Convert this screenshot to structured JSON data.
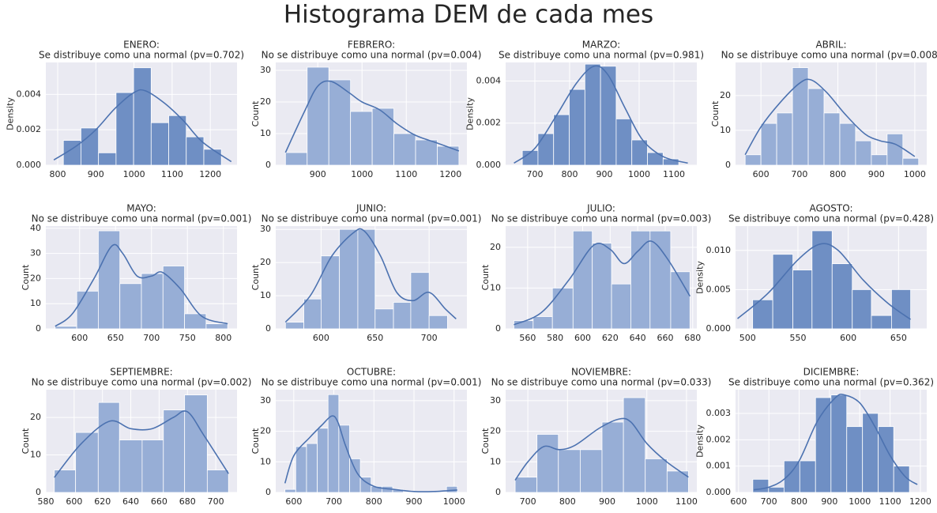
{
  "title": "Histograma DEM de cada mes",
  "chart_data": [
    {
      "type": "histogram",
      "title": "ENERO:",
      "subtitle": "Se distribuye como una normal (pv=0.702)",
      "ylabel": "Density",
      "color": "#6f8fc4",
      "line_color": "#4c72b0",
      "grid": true,
      "bins": [
        815,
        861,
        907,
        953,
        999,
        1045,
        1091,
        1137,
        1183,
        1229
      ],
      "values": [
        0.0014,
        0.0021,
        0.0007,
        0.0041,
        0.0055,
        0.0024,
        0.0028,
        0.0016,
        0.0009
      ],
      "kde": {
        "x": [
          790,
          850,
          900,
          950,
          1000,
          1030,
          1080,
          1130,
          1180,
          1255
        ],
        "values": [
          0.0003,
          0.0011,
          0.002,
          0.0032,
          0.0041,
          0.0042,
          0.0035,
          0.0025,
          0.0013,
          0.0002
        ]
      },
      "xlim": [
        769,
        1270
      ],
      "ylim": [
        0,
        0.0058
      ],
      "xticks": [
        800,
        900,
        1000,
        1100,
        1200
      ],
      "yticks": [
        {
          "value": 0,
          "label": "0.000"
        },
        {
          "value": 0.002,
          "label": "0.002"
        },
        {
          "value": 0.004,
          "label": "0.004"
        }
      ]
    },
    {
      "type": "histogram",
      "title": "FEBRERO:",
      "subtitle": "No se distribuye como una normal (pv=0.004)",
      "ylabel": "Count",
      "color": "#97aed6",
      "line_color": "#4c72b0",
      "grid": true,
      "bins": [
        827,
        876,
        925,
        974,
        1023,
        1072,
        1121,
        1170,
        1219
      ],
      "values": [
        4,
        31,
        27,
        17,
        18,
        10,
        8,
        6
      ],
      "kde": {
        "x": [
          827,
          870,
          900,
          930,
          970,
          1000,
          1040,
          1080,
          1120,
          1170,
          1219
        ],
        "values": [
          4,
          17,
          25,
          26.5,
          23,
          20,
          17.5,
          13,
          9.5,
          7,
          4.5
        ]
      },
      "xlim": [
        805,
        1237
      ],
      "ylim": [
        0,
        32.5
      ],
      "xticks": [
        900,
        1000,
        1100,
        1200
      ],
      "yticks": [
        0,
        10,
        20,
        30
      ]
    },
    {
      "type": "histogram",
      "title": "MARZO:",
      "subtitle": "Se distribuye como una normal (pv=0.981)",
      "ylabel": "Density",
      "color": "#6f8fc4",
      "line_color": "#4c72b0",
      "grid": true,
      "bins": [
        664,
        709,
        754,
        799,
        844,
        889,
        934,
        979,
        1024,
        1069,
        1114
      ],
      "values": [
        0.0007,
        0.0015,
        0.0024,
        0.0036,
        0.0048,
        0.0047,
        0.0022,
        0.0012,
        0.0006,
        0.0003
      ],
      "kde": {
        "x": [
          640,
          700,
          760,
          820,
          870,
          910,
          960,
          1010,
          1070,
          1140
        ],
        "values": [
          0.0001,
          0.0008,
          0.0023,
          0.0039,
          0.0047,
          0.0043,
          0.0027,
          0.0012,
          0.0004,
          0.0001
        ]
      },
      "xlim": [
        616,
        1166
      ],
      "ylim": [
        0,
        0.00488
      ],
      "xticks": [
        700,
        800,
        900,
        1000,
        1100
      ],
      "yticks": [
        {
          "value": 0,
          "label": "0.000"
        },
        {
          "value": 0.002,
          "label": "0.002"
        },
        {
          "value": 0.004,
          "label": "0.004"
        }
      ]
    },
    {
      "type": "histogram",
      "title": "ABRIL:",
      "subtitle": "No se distribuye como una normal (pv=0.008)",
      "ylabel": "Count",
      "color": "#97aed6",
      "line_color": "#4c72b0",
      "grid": true,
      "bins": [
        559,
        600,
        641,
        682,
        723,
        764,
        805,
        846,
        887,
        928,
        969,
        1010
      ],
      "values": [
        3,
        12,
        15,
        28,
        22,
        15,
        12,
        7,
        3,
        9,
        2
      ],
      "kde": {
        "x": [
          559,
          600,
          650,
          700,
          730,
          770,
          820,
          870,
          910,
          950,
          1000
        ],
        "values": [
          3,
          11,
          18,
          23.5,
          24.5,
          21,
          14.5,
          9,
          7,
          6,
          2.5
        ]
      },
      "xlim": [
        534,
        1031
      ],
      "ylim": [
        0,
        29.5
      ],
      "xticks": [
        600,
        700,
        800,
        900,
        1000
      ],
      "yticks": [
        0,
        10,
        20
      ]
    },
    {
      "type": "histogram",
      "title": "MAYO:",
      "subtitle": "No se distribuye como una normal (pv=0.001)",
      "ylabel": "Count",
      "color": "#97aed6",
      "line_color": "#4c72b0",
      "grid": true,
      "bins": [
        566,
        596,
        626,
        656,
        686,
        716,
        746,
        776,
        806
      ],
      "values": [
        1,
        15,
        39,
        18,
        22,
        25,
        6,
        2
      ],
      "kde": {
        "x": [
          566,
          590,
          620,
          645,
          660,
          680,
          700,
          715,
          740,
          770,
          806
        ],
        "values": [
          1,
          6,
          20,
          33,
          30,
          21,
          21,
          22.5,
          16,
          5,
          2
        ]
      },
      "xlim": [
        553,
        819
      ],
      "ylim": [
        0,
        40.9
      ],
      "xticks": [
        600,
        650,
        700,
        750,
        800
      ],
      "yticks": [
        0,
        10,
        20,
        30,
        40
      ]
    },
    {
      "type": "histogram",
      "title": "JUNIO:",
      "subtitle": "No se distribuye como una normal (pv=0.001)",
      "ylabel": "Count",
      "color": "#97aed6",
      "line_color": "#4c72b0",
      "grid": true,
      "bins": [
        567,
        584,
        600,
        617,
        634,
        650,
        667,
        683,
        700,
        717
      ],
      "values": [
        2,
        9,
        22,
        30,
        30,
        6,
        8,
        17,
        4
      ],
      "kde": {
        "x": [
          567,
          590,
          610,
          630,
          640,
          655,
          670,
          685,
          700,
          715,
          725
        ],
        "values": [
          2,
          10,
          22,
          29,
          29.5,
          22,
          11,
          8.5,
          11,
          6,
          3
        ]
      },
      "xlim": [
        558,
        735
      ],
      "ylim": [
        0,
        31
      ],
      "xticks": [
        600,
        650,
        700
      ],
      "yticks": [
        0,
        10,
        20,
        30
      ]
    },
    {
      "type": "histogram",
      "title": "JULIO:",
      "subtitle": "No se distribuye como una normal (pv=0.003)",
      "ylabel": "Count",
      "color": "#97aed6",
      "line_color": "#4c72b0",
      "grid": true,
      "bins": [
        550,
        564,
        578,
        593,
        607,
        621,
        635,
        649,
        664,
        678
      ],
      "values": [
        2,
        3,
        10,
        24,
        21,
        11,
        24,
        24,
        14
      ],
      "kde": {
        "x": [
          550,
          570,
          590,
          608,
          620,
          630,
          640,
          650,
          662,
          678
        ],
        "values": [
          1,
          4,
          12,
          20.5,
          19.5,
          16,
          19,
          21.5,
          17,
          8
        ]
      },
      "xlim": [
        544,
        683
      ],
      "ylim": [
        0,
        25.2
      ],
      "xticks": [
        560,
        580,
        600,
        620,
        640,
        660,
        680
      ],
      "yticks": [
        0,
        10,
        20
      ]
    },
    {
      "type": "histogram",
      "title": "AGOSTO:",
      "subtitle": "Se distribuye como una normal (pv=0.428)",
      "ylabel": "Density",
      "color": "#6f8fc4",
      "line_color": "#4c72b0",
      "grid": true,
      "bins": [
        505,
        525,
        545,
        564,
        584,
        604,
        623,
        643,
        662
      ],
      "values": [
        0.0037,
        0.0095,
        0.0075,
        0.0125,
        0.0083,
        0.005,
        0.0017,
        0.005
      ],
      "kde": {
        "x": [
          490,
          520,
          550,
          572,
          590,
          615,
          640,
          662
        ],
        "values": [
          0.0013,
          0.0045,
          0.0088,
          0.0108,
          0.01,
          0.0062,
          0.0032,
          0.0012
        ]
      },
      "xlim": [
        488,
        678
      ],
      "ylim": [
        0,
        0.0131
      ],
      "xticks": [
        500,
        550,
        600,
        650
      ],
      "yticks": [
        {
          "value": 0,
          "label": "0.000"
        },
        {
          "value": 0.005,
          "label": "0.005"
        },
        {
          "value": 0.01,
          "label": "0.010"
        }
      ]
    },
    {
      "type": "histogram",
      "title": "SEPTIEMBRE:",
      "subtitle": "No se distribuye como una normal (pv=0.002)",
      "ylabel": "Count",
      "color": "#97aed6",
      "line_color": "#4c72b0",
      "grid": true,
      "bins": [
        586,
        601,
        617,
        632,
        648,
        663,
        678,
        694,
        709
      ],
      "values": [
        6,
        16,
        24,
        14,
        14,
        22,
        26,
        6
      ],
      "kde": {
        "x": [
          586,
          605,
          625,
          640,
          655,
          670,
          680,
          692,
          709
        ],
        "values": [
          4,
          13,
          19,
          17,
          17,
          20,
          21.5,
          15,
          5
        ]
      },
      "xlim": [
        580,
        715
      ],
      "ylim": [
        0,
        27.4
      ],
      "xticks": [
        580,
        600,
        620,
        640,
        660,
        680,
        700
      ],
      "yticks": [
        0,
        10,
        20
      ]
    },
    {
      "type": "histogram",
      "title": "OCTUBRE:",
      "subtitle": "No se distribuye como una normal (pv=0.001)",
      "ylabel": "Count",
      "color": "#97aed6",
      "line_color": "#4c72b0",
      "grid": true,
      "bins": [
        578,
        604.9,
        631.8,
        658.6,
        685.5,
        712.4,
        739.3,
        766.1,
        793,
        819.9,
        846.8,
        873.6,
        900.5,
        927.4,
        954.3,
        981.1,
        1008
      ],
      "values": [
        1,
        15,
        16,
        21,
        32,
        22,
        11,
        5,
        2,
        2,
        1,
        0,
        0,
        0,
        0,
        2
      ],
      "kde": {
        "x": [
          578,
          600,
          640,
          670,
          695,
          710,
          730,
          760,
          800,
          850,
          900,
          950,
          1008
        ],
        "values": [
          3,
          12,
          18,
          22,
          25,
          23,
          15,
          6,
          2,
          1,
          0.3,
          0.3,
          0.8
        ]
      },
      "xlim": [
        555,
        1032
      ],
      "ylim": [
        0,
        33.6
      ],
      "xticks": [
        600,
        700,
        800,
        900,
        1000
      ],
      "yticks": [
        0,
        10,
        20,
        30
      ]
    },
    {
      "type": "histogram",
      "title": "NOVIEMBRE:",
      "subtitle": "No se distribuye como una normal (pv=0.033)",
      "ylabel": "Count",
      "color": "#97aed6",
      "line_color": "#4c72b0",
      "grid": true,
      "bins": [
        668,
        723,
        777,
        832,
        887,
        941,
        996,
        1051,
        1105
      ],
      "values": [
        5,
        19,
        14,
        14,
        23,
        31,
        11,
        7
      ],
      "kde": {
        "x": [
          668,
          700,
          740,
          780,
          820,
          880,
          930,
          960,
          1000,
          1050,
          1105
        ],
        "values": [
          4,
          10,
          15,
          14,
          15.5,
          21,
          24,
          23,
          16,
          10,
          5
        ]
      },
      "xlim": [
        644,
        1126
      ],
      "ylim": [
        0,
        33.6
      ],
      "xticks": [
        700,
        800,
        900,
        1000,
        1100
      ],
      "yticks": [
        0,
        10,
        20,
        30
      ]
    },
    {
      "type": "histogram",
      "title": "DICIEMBRE:",
      "subtitle": "Se distribuye como una normal (pv=0.362)",
      "ylabel": "Density",
      "color": "#6f8fc4",
      "line_color": "#4c72b0",
      "grid": true,
      "bins": [
        647,
        699,
        750,
        802,
        854,
        905,
        957,
        1009,
        1061,
        1112,
        1164
      ],
      "values": [
        0.0005,
        0.0002,
        0.0012,
        0.0012,
        0.0036,
        0.0037,
        0.0025,
        0.003,
        0.0025,
        0.001
      ],
      "kde": {
        "x": [
          650,
          700,
          750,
          800,
          860,
          920,
          950,
          1000,
          1050,
          1100,
          1150,
          1190
        ],
        "values": [
          0.0001,
          0.0002,
          0.0005,
          0.0012,
          0.0027,
          0.0036,
          0.0037,
          0.0034,
          0.0025,
          0.0014,
          0.0006,
          0.0003
        ]
      },
      "xlim": [
        590,
        1221
      ],
      "ylim": [
        0,
        0.0039
      ],
      "xticks": [
        600,
        700,
        800,
        900,
        1000,
        1100,
        1200
      ],
      "yticks": [
        {
          "value": 0,
          "label": "0.000"
        },
        {
          "value": 0.001,
          "label": "0.001"
        },
        {
          "value": 0.002,
          "label": "0.002"
        },
        {
          "value": 0.003,
          "label": "0.003"
        }
      ]
    }
  ]
}
